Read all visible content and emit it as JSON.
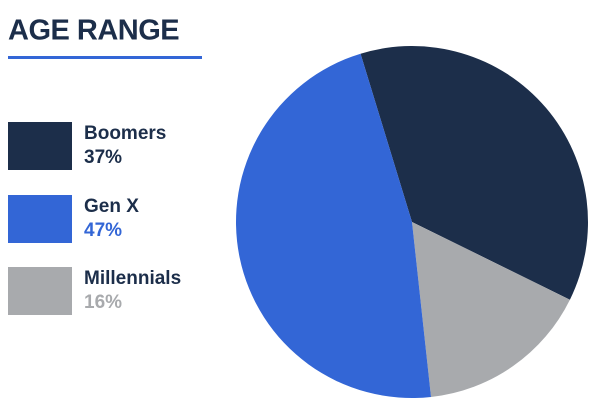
{
  "chart_data": {
    "type": "pie",
    "title": "AGE RANGE",
    "categories": [
      "Boomers",
      "Gen X",
      "Millennials"
    ],
    "values": [
      37,
      47,
      16
    ],
    "value_labels": [
      "37%",
      "47%",
      "16%"
    ],
    "colors": [
      "#1c2e4a",
      "#3366d6",
      "#a8aaad"
    ]
  }
}
